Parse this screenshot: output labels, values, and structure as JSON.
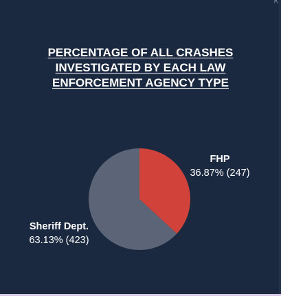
{
  "chart_data": {
    "type": "pie",
    "title_lines": [
      "PERCENTAGE OF ALL CRASHES ",
      "INVESTIGATED BY EACH LAW ",
      "ENFORCEMENT AGENCY TYPE"
    ],
    "slices": [
      {
        "name": "FHP",
        "value": 247,
        "percent": 36.87,
        "label": "36.87% (247)",
        "color": "#d0423a"
      },
      {
        "name": "Sheriff Dept.",
        "value": 423,
        "percent": 63.13,
        "label": "63.13% (423)",
        "color": "#5b6577"
      }
    ]
  },
  "colors": {
    "background": "#1b2940",
    "text": "#ffffff"
  }
}
